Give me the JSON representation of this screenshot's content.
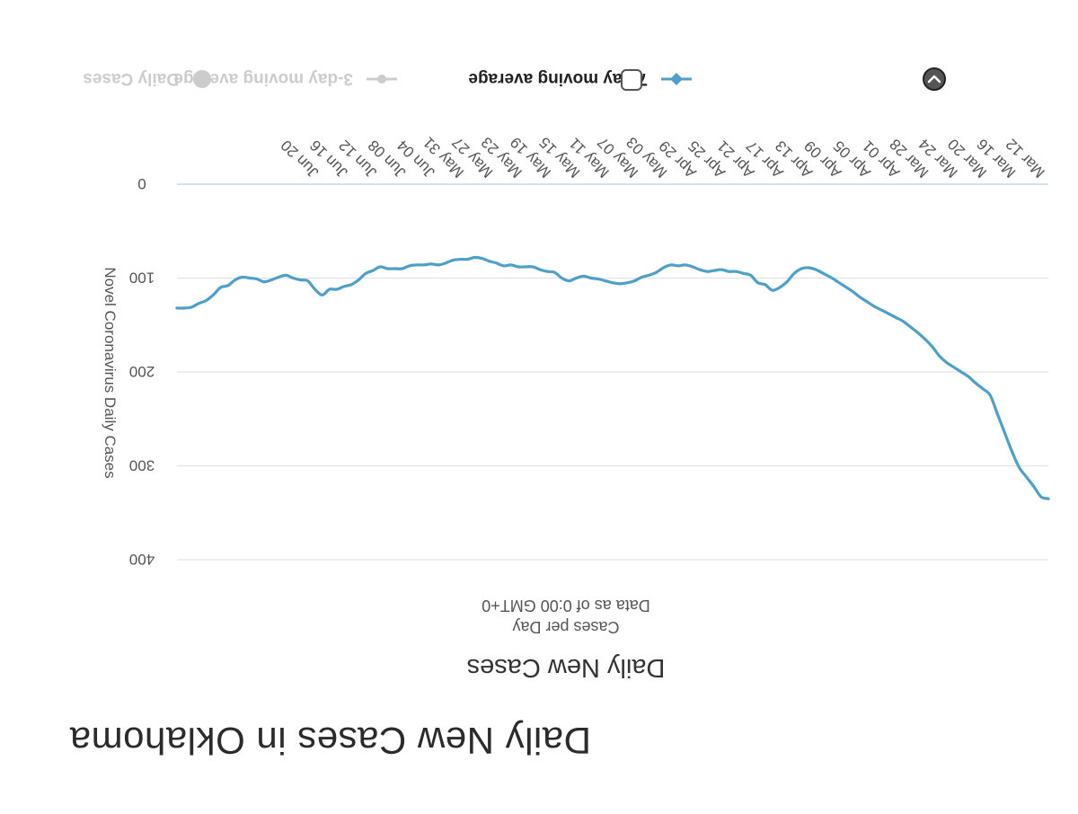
{
  "page": {
    "title": "Daily New Cases in Oklahoma"
  },
  "chart_data": {
    "type": "line",
    "title": "Daily New Cases",
    "subtitle_lines": [
      "Cases per Day",
      "Data as of 0:00 GMT+0"
    ],
    "ylabel": "Novel Coronavirus Daily Cases",
    "xlabel": "",
    "ylim": [
      0,
      400
    ],
    "yticks": [
      0,
      100,
      200,
      300,
      400
    ],
    "grid": true,
    "x_tick_labels": [
      "Mar 12",
      "Mar 16",
      "Mar 20",
      "Mar 24",
      "Mar 28",
      "Apr 01",
      "Apr 05",
      "Apr 09",
      "Apr 13",
      "Apr 17",
      "Apr 21",
      "Apr 25",
      "Apr 29",
      "May 03",
      "May 07",
      "May 11",
      "May 15",
      "May 19",
      "May 23",
      "May 27",
      "May 31",
      "Jun 04",
      "Jun 08",
      "Jun 12",
      "Jun 16",
      "Jun 20"
    ],
    "x_start": "Mar 12",
    "legend_position": "bottom",
    "legend": [
      {
        "name": "Daily Cases",
        "visible": false,
        "color": "#cccccc"
      },
      {
        "name": "3-day moving average",
        "visible": false,
        "color": "#cccccc"
      },
      {
        "name": "7-day moving average",
        "visible": true,
        "color": "#4fa0c8"
      }
    ],
    "series": [
      {
        "name": "7-day moving average",
        "color": "#4fa0c8",
        "x_dates": [
          "Mar 12",
          "Mar 13",
          "Mar 14",
          "Mar 15",
          "Mar 16",
          "Mar 17",
          "Mar 18",
          "Mar 19",
          "Mar 20",
          "Mar 21",
          "Mar 22",
          "Mar 23",
          "Mar 24",
          "Mar 25",
          "Mar 26",
          "Mar 27",
          "Mar 28",
          "Mar 29",
          "Mar 30",
          "Mar 31",
          "Apr 01",
          "Apr 02",
          "Apr 03",
          "Apr 04",
          "Apr 05",
          "Apr 06",
          "Apr 07",
          "Apr 08",
          "Apr 09",
          "Apr 10",
          "Apr 11",
          "Apr 12",
          "Apr 13",
          "Apr 14",
          "Apr 15",
          "Apr 16",
          "Apr 17",
          "Apr 18",
          "Apr 19",
          "Apr 20",
          "Apr 21",
          "Apr 22",
          "Apr 23",
          "Apr 24",
          "Apr 25",
          "Apr 26",
          "Apr 27",
          "Apr 28",
          "Apr 29",
          "Apr 30",
          "May 01",
          "May 02",
          "May 03",
          "May 04",
          "May 05",
          "May 06",
          "May 07",
          "May 08",
          "May 09",
          "May 10",
          "May 11",
          "May 12",
          "May 13",
          "May 14",
          "May 15",
          "May 16",
          "May 17",
          "May 18",
          "May 19",
          "May 20",
          "May 21",
          "May 22",
          "May 23",
          "May 24",
          "May 25",
          "May 26",
          "May 27",
          "May 28",
          "May 29",
          "May 30",
          "May 31",
          "Jun 01",
          "Jun 02",
          "Jun 03",
          "Jun 04",
          "Jun 05",
          "Jun 06",
          "Jun 07",
          "Jun 08",
          "Jun 09",
          "Jun 10",
          "Jun 11",
          "Jun 12",
          "Jun 13",
          "Jun 14",
          "Jun 15",
          "Jun 16",
          "Jun 17",
          "Jun 18",
          "Jun 19",
          "Jun 20",
          "Jun 21",
          "Jun 22",
          "Jun 23",
          "Jun 24",
          "Jun 25",
          "Jun 26",
          "Jun 27",
          "Jun 28",
          "Jun 29",
          "Jun 30",
          "Jul 01",
          "Jul 02",
          "Jul 03",
          "Jul 04",
          "Jul 05",
          "Jul 06",
          "Jul 07",
          "Jul 08",
          "Jul 09",
          "Jul 10"
        ],
        "values": [
          335,
          333,
          322,
          312,
          302,
          285,
          265,
          245,
          225,
          218,
          212,
          205,
          200,
          195,
          190,
          183,
          173,
          165,
          158,
          152,
          146,
          142,
          138,
          134,
          130,
          125,
          120,
          114,
          109,
          104,
          99,
          95,
          91,
          89,
          90,
          95,
          104,
          110,
          113,
          107,
          105,
          97,
          95,
          93,
          93,
          91,
          92,
          93,
          91,
          88,
          86,
          87,
          86,
          89,
          94,
          97,
          99,
          103,
          105,
          106,
          105,
          103,
          101,
          100,
          98,
          100,
          103,
          100,
          94,
          93,
          91,
          88,
          88,
          88,
          86,
          87,
          84,
          82,
          79,
          78,
          80,
          80,
          81,
          84,
          86,
          85,
          86,
          86,
          87,
          90,
          90,
          90,
          88,
          92,
          95,
          102,
          107,
          109,
          112,
          112,
          118,
          112,
          103,
          102,
          100,
          97,
          99,
          102,
          104,
          101,
          100,
          99,
          102,
          108,
          110,
          118,
          124,
          127,
          131,
          132,
          132
        ]
      }
    ]
  }
}
